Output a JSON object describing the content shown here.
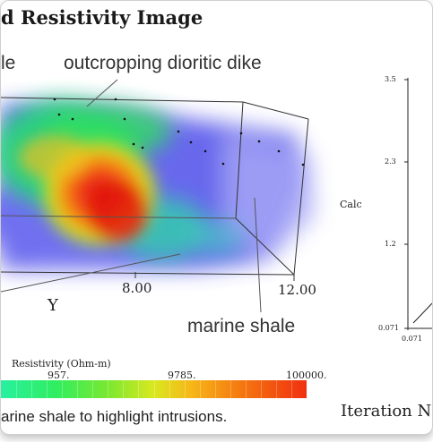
{
  "header": {
    "title": "d Resistivity Image"
  },
  "annotations": {
    "left_fragment": "le",
    "dike": "outcropping dioritic dike",
    "shale": "marine shale"
  },
  "axis_3d": {
    "tick_8": "8.00",
    "tick_12": "12.00",
    "label_y": "Y"
  },
  "colorbar": {
    "title": "Resistivity (Ohm-m)",
    "ticks": [
      "957.",
      "9785.",
      "100000."
    ],
    "colors": [
      "#28f0a0",
      "#30ee60",
      "#7ae830",
      "#d9e820",
      "#f6b818",
      "#f57a10",
      "#f03010"
    ]
  },
  "caption": "arine shale to highlight intrusions.",
  "right_chart": {
    "y_ticks": [
      "3.5",
      "2.3",
      "1.2",
      "0.071"
    ],
    "x_tick": "0.071",
    "ylabel": "Calc",
    "xlabel": "Iteration N"
  }
}
